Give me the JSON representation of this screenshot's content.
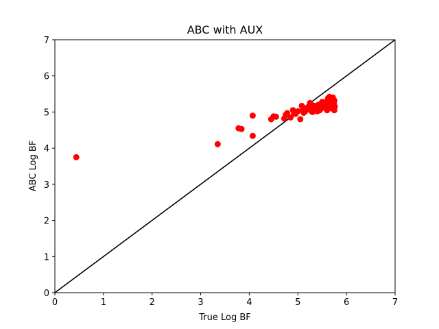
{
  "chart_data": {
    "type": "scatter",
    "title": "ABC with AUX",
    "xlabel": "True Log BF",
    "ylabel": "ABC Log BF",
    "xlim": [
      0,
      7
    ],
    "ylim": [
      0,
      7
    ],
    "xticks": [
      "0",
      "1",
      "2",
      "3",
      "4",
      "5",
      "6",
      "7"
    ],
    "yticks": [
      "0",
      "1",
      "2",
      "3",
      "4",
      "5",
      "6",
      "7"
    ],
    "grid": false,
    "reference_line": {
      "x": [
        0,
        7
      ],
      "y": [
        0,
        7
      ],
      "color": "#000000"
    },
    "series": [
      {
        "color": "#ff0000",
        "x": [
          0.44,
          3.35,
          3.78,
          3.84,
          4.07,
          4.07,
          4.45,
          4.5,
          4.55,
          4.72,
          4.75,
          4.78,
          4.85,
          4.9,
          4.92,
          5.0,
          5.05,
          5.08,
          5.1,
          5.12,
          5.15,
          5.2,
          5.22,
          5.25,
          5.28,
          5.3,
          5.32,
          5.35,
          5.38,
          5.4,
          5.42,
          5.45,
          5.48,
          5.5,
          5.52,
          5.55,
          5.58,
          5.6,
          5.62,
          5.65,
          5.65,
          5.68,
          5.7,
          5.7,
          5.72,
          5.74,
          5.75,
          5.75,
          5.76,
          5.6,
          5.45,
          5.3,
          5.15,
          4.95
        ],
        "y": [
          3.75,
          4.11,
          4.55,
          4.53,
          4.9,
          4.34,
          4.8,
          4.88,
          4.87,
          4.82,
          4.92,
          4.97,
          4.85,
          5.05,
          4.98,
          5.02,
          4.8,
          5.17,
          5.05,
          4.98,
          5.1,
          5.08,
          5.15,
          5.25,
          5.02,
          5.1,
          5.18,
          5.08,
          5.12,
          5.02,
          5.2,
          5.15,
          5.1,
          5.28,
          5.15,
          5.25,
          5.12,
          5.3,
          5.38,
          5.2,
          5.42,
          5.28,
          5.35,
          5.1,
          5.4,
          5.25,
          5.05,
          5.32,
          5.15,
          5.05,
          5.05,
          5.0,
          5.02,
          4.95
        ]
      }
    ]
  }
}
